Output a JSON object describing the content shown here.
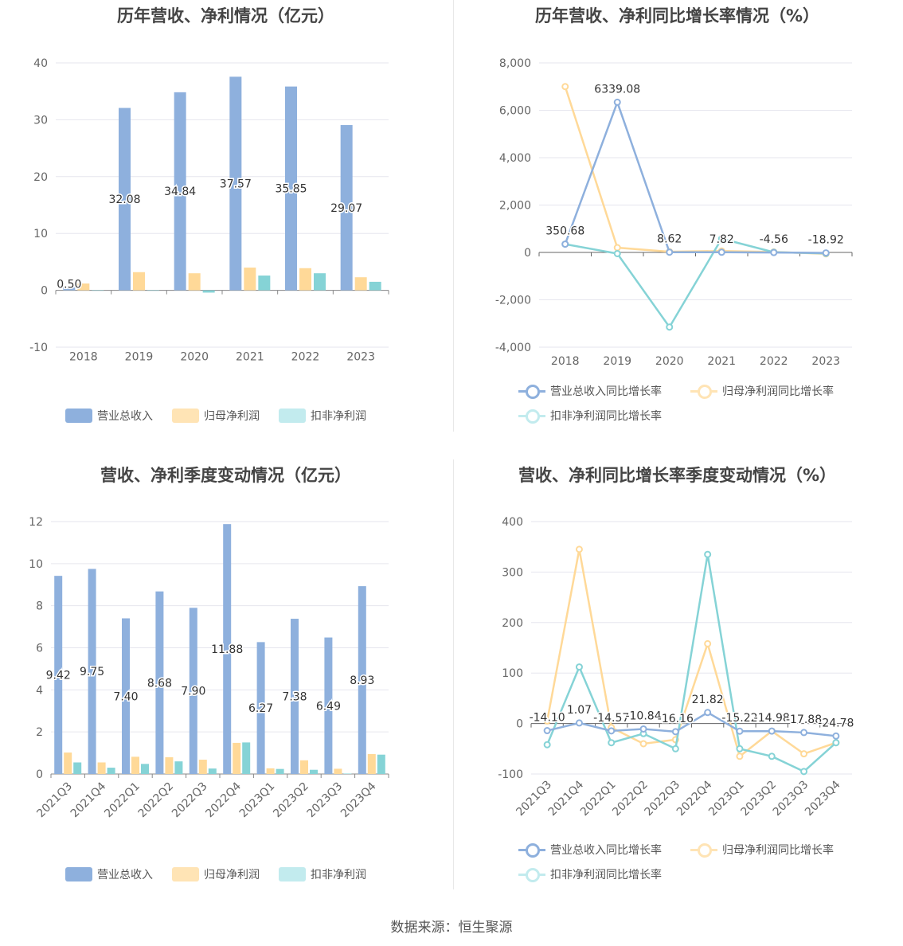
{
  "colors": {
    "revenue": "#8eb0dd",
    "net_profit": "#ffd998",
    "deducted": "#85d3d6",
    "revenue_legend": "#8eb0dd",
    "np_legend": "#ffe4b5",
    "ded_legend": "#c2ebee"
  },
  "source": "数据来源：恒生聚源",
  "chart_data": [
    {
      "id": "annual-amounts",
      "type": "bar",
      "title": "历年营收、净利情况（亿元）",
      "categories": [
        "2018",
        "2019",
        "2020",
        "2021",
        "2022",
        "2023"
      ],
      "ylim": [
        -10,
        40
      ],
      "yticks": [
        "40",
        "30",
        "20",
        "10",
        "0",
        "-10"
      ],
      "series": [
        {
          "name": "营业总收入",
          "values": [
            0.5,
            32.08,
            34.84,
            37.57,
            35.85,
            29.07
          ],
          "labels": [
            "0.50",
            "32.08",
            "34.84",
            "37.57",
            "35.85",
            "29.07"
          ]
        },
        {
          "name": "归母净利润",
          "values": [
            1.2,
            3.2,
            3.0,
            4.0,
            3.9,
            2.3
          ]
        },
        {
          "name": "扣非净利润",
          "values": [
            0,
            0,
            -0.4,
            2.6,
            3.0,
            1.5
          ]
        }
      ],
      "grid": true,
      "legend": "bottom"
    },
    {
      "id": "annual-growth",
      "type": "line",
      "title": "历年营收、净利同比增长率情况（%）",
      "categories": [
        "2018",
        "2019",
        "2020",
        "2021",
        "2022",
        "2023"
      ],
      "ylim": [
        -4000,
        8000
      ],
      "yticks": [
        "8,000",
        "6,000",
        "4,000",
        "2,000",
        "0",
        "-2,000",
        "-4,000"
      ],
      "series": [
        {
          "name": "营业总收入同比增长率",
          "values": [
            350.68,
            6339.08,
            8.62,
            7.82,
            -4.56,
            -18.92
          ],
          "labels": [
            "350.68",
            "6339.08",
            "8.62",
            "7.82",
            "-4.56",
            "-18.92"
          ]
        },
        {
          "name": "归母净利润同比增长率",
          "values": [
            7000,
            200,
            30,
            60,
            20,
            -60
          ]
        },
        {
          "name": "扣非净利润同比增长率",
          "values": [
            350,
            -50,
            -3150,
            580,
            10,
            -40
          ]
        }
      ],
      "grid": true,
      "legend": "bottom"
    },
    {
      "id": "quarterly-amounts",
      "type": "bar",
      "title": "营收、净利季度变动情况（亿元）",
      "categories": [
        "2021Q3",
        "2021Q4",
        "2022Q1",
        "2022Q2",
        "2022Q3",
        "2022Q4",
        "2023Q1",
        "2023Q2",
        "2023Q3",
        "2023Q4"
      ],
      "ylim": [
        0,
        12
      ],
      "yticks": [
        "12",
        "10",
        "8",
        "6",
        "4",
        "2",
        "0"
      ],
      "series": [
        {
          "name": "营业总收入",
          "values": [
            9.42,
            9.75,
            7.4,
            8.68,
            7.9,
            11.88,
            6.27,
            7.38,
            6.49,
            8.93
          ],
          "labels": [
            "9.42",
            "9.75",
            "7.40",
            "8.68",
            "7.90",
            "11.88",
            "6.27",
            "7.38",
            "6.49",
            "8.93"
          ]
        },
        {
          "name": "归母净利润",
          "values": [
            1.02,
            0.55,
            0.82,
            0.8,
            0.68,
            1.48,
            0.27,
            0.65,
            0.25,
            0.95
          ]
        },
        {
          "name": "扣非净利润",
          "values": [
            0.55,
            0.3,
            0.48,
            0.6,
            0.26,
            1.5,
            0.24,
            0.2,
            0.02,
            0.92
          ]
        }
      ],
      "grid": true,
      "legend": "bottom"
    },
    {
      "id": "quarterly-growth",
      "type": "line",
      "title": "营收、净利同比增长率季度变动情况（%）",
      "categories": [
        "2021Q3",
        "2021Q4",
        "2022Q1",
        "2022Q2",
        "2022Q3",
        "2022Q4",
        "2023Q1",
        "2023Q2",
        "2023Q3",
        "2023Q4"
      ],
      "ylim": [
        -100,
        400
      ],
      "yticks": [
        "400",
        "300",
        "200",
        "100",
        "0",
        "-100"
      ],
      "series": [
        {
          "name": "营业总收入同比增长率",
          "values": [
            -14.1,
            1.07,
            -14.57,
            -10.84,
            -16.16,
            21.82,
            -15.22,
            -14.98,
            -17.88,
            -24.78
          ],
          "labels": [
            "-14.10",
            "1.07",
            "-14.57",
            "-10.84",
            "-16.16",
            "21.82",
            "-15.22",
            "-14.98",
            "-17.88",
            "-24.78"
          ]
        },
        {
          "name": "归母净利润同比增长率",
          "values": [
            5,
            345,
            -8,
            -40,
            -32,
            158,
            -65,
            -15,
            -60,
            -38
          ]
        },
        {
          "name": "扣非净利润同比增长率",
          "values": [
            -42,
            112,
            -38,
            -20,
            -50,
            335,
            -50,
            -65,
            -95,
            -38
          ]
        }
      ],
      "grid": true,
      "legend": "bottom"
    }
  ]
}
